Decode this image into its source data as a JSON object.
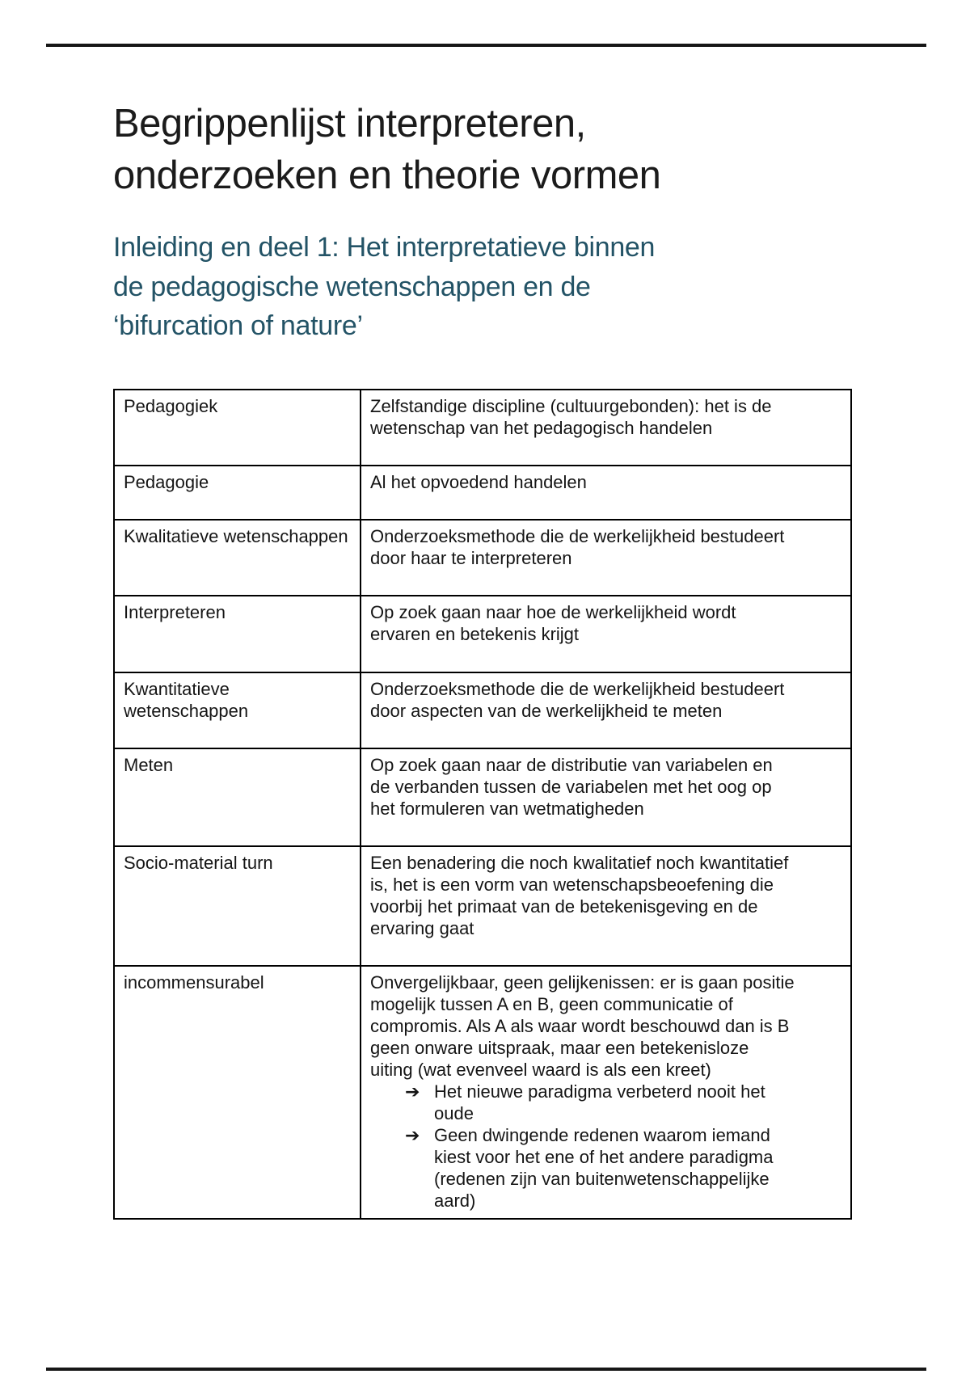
{
  "page": {
    "title": "Begrippenlijst interpreteren, onderzoeken en theorie vormen",
    "subtitle": "Inleiding en deel 1: Het interpretatieve binnen de pedagogische wetenschappen en de ‘bifurcation of nature’"
  },
  "colors": {
    "subtitle_accent": "#235366",
    "text": "#151515",
    "table_border": "#000000"
  },
  "glossary": {
    "bullet_icon": "➔",
    "rows": [
      {
        "term": "Pedagogiek",
        "definition": "Zelfstandige discipline (cultuurgebonden): het is de wetenschap van het pedagogisch handelen"
      },
      {
        "term": "Pedagogie",
        "definition": "Al het opvoedend handelen"
      },
      {
        "term": "Kwalitatieve wetenschappen",
        "definition": "Onderzoeksmethode die de werkelijkheid bestudeert door haar te interpreteren"
      },
      {
        "term": "Interpreteren",
        "definition": "Op zoek gaan naar hoe de werkelijkheid wordt ervaren en betekenis krijgt"
      },
      {
        "term": "Kwantitatieve wetenschappen",
        "definition": "Onderzoeksmethode die de werkelijkheid bestudeert door aspecten van de werkelijkheid te meten"
      },
      {
        "term": "Meten",
        "definition": "Op zoek gaan naar de distributie van variabelen en de verbanden tussen de variabelen met het oog op het formuleren van wetmatigheden"
      },
      {
        "term": "Socio-material turn",
        "definition": "Een benadering die noch kwalitatief noch kwantitatief is, het is een vorm van wetenschapsbeoefening die voorbij het primaat van de betekenisgeving en de ervaring gaat"
      },
      {
        "term": "incommensurabel",
        "definition": "Onvergelijkbaar, geen gelijkenissen: er is gaan positie mogelijk tussen A en B, geen communicatie of compromis. Als A als waar wordt beschouwd dan is B geen onware uitspraak, maar een betekenisloze uiting (wat evenveel waard is als een kreet)",
        "bullets": [
          "Het nieuwe paradigma verbeterd nooit het oude",
          "Geen dwingende redenen waarom iemand kiest voor het ene of het andere paradigma (redenen zijn van buitenwetenschappelijke aard)"
        ]
      }
    ]
  }
}
